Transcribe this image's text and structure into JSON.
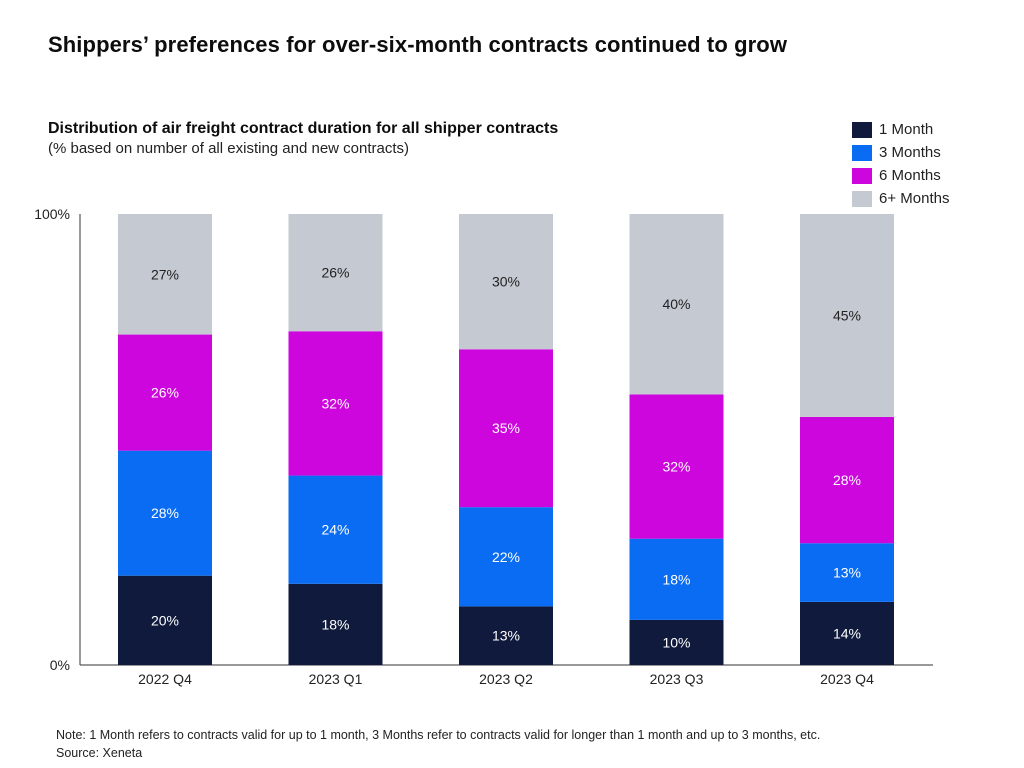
{
  "headline": "Shippers’ preferences for over-six-month contracts continued to grow",
  "note": "Note: 1 Month refers to contracts valid for up to 1 month, 3 Months refer to contracts valid for longer than 1 month and up to 3 months, etc.",
  "source": "Source: Xeneta",
  "chart_data": {
    "type": "bar",
    "stacked": true,
    "title": "Distribution of air freight contract duration for all shipper contracts",
    "subtitle": "(% based on number of all existing and new contracts)",
    "categories": [
      "2022 Q4",
      "2023 Q1",
      "2023 Q2",
      "2023 Q3",
      "2023 Q4"
    ],
    "series": [
      {
        "name": "1 Month",
        "color": "#0f1a3c",
        "values": [
          20,
          18,
          13,
          10,
          14
        ]
      },
      {
        "name": "3 Months",
        "color": "#0a6cf2",
        "values": [
          28,
          24,
          22,
          18,
          13
        ]
      },
      {
        "name": "6 Months",
        "color": "#cc06dc",
        "values": [
          26,
          32,
          35,
          32,
          28
        ]
      },
      {
        "name": "6+ Months",
        "color": "#c5c9d2",
        "values": [
          27,
          26,
          30,
          40,
          45
        ]
      }
    ],
    "yaxis_labels": [
      "0%",
      "100%"
    ],
    "ylim": [
      0,
      100
    ],
    "value_suffix": "%",
    "legend_position": "top-right",
    "grid": false
  }
}
